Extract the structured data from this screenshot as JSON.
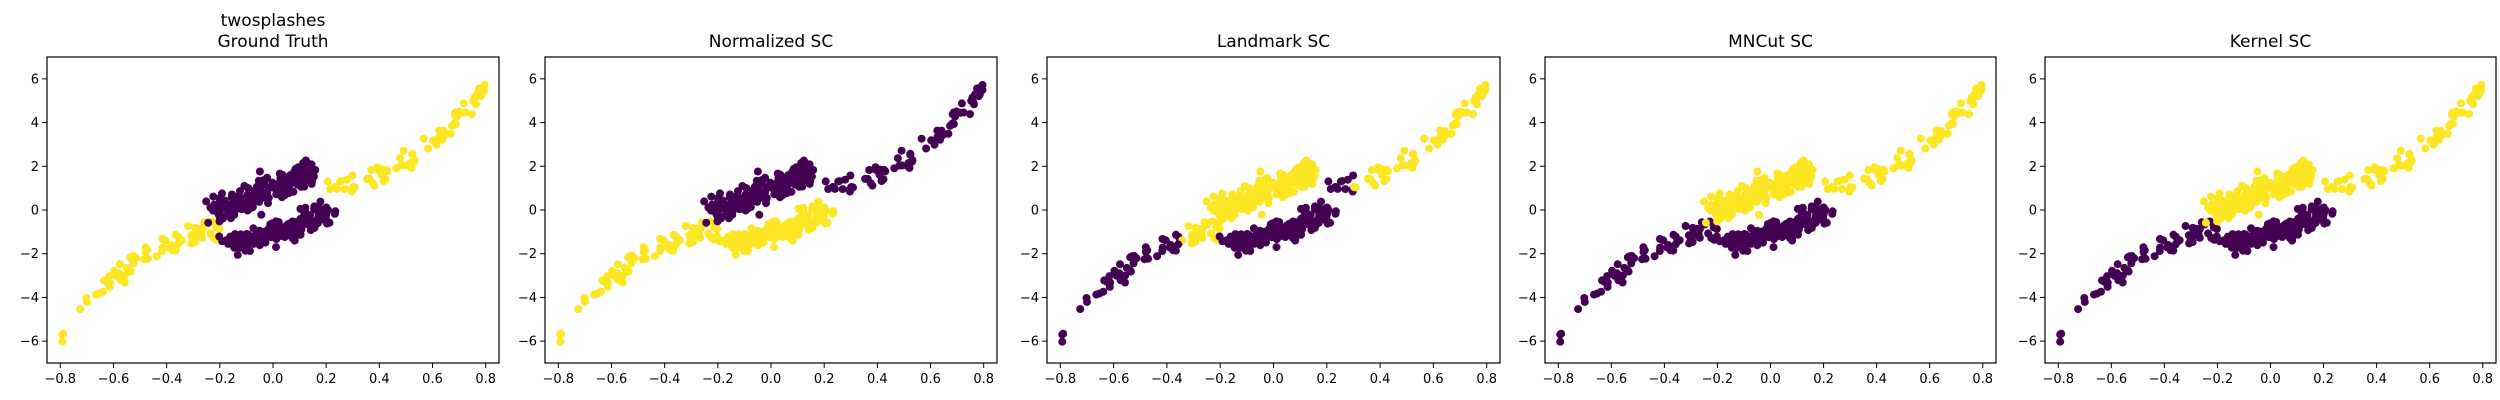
{
  "chart_data": [
    {
      "type": "scatter",
      "title_lines": [
        "twosplashes",
        "Ground Truth"
      ],
      "x_ticks": [
        "-0.8",
        "-0.6",
        "-0.4",
        "-0.2",
        "0.0",
        "0.2",
        "0.4",
        "0.6",
        "0.8"
      ],
      "y_ticks": [
        "-6",
        "-4",
        "-2",
        "0",
        "2",
        "4",
        "6"
      ],
      "xlim": [
        -0.85,
        0.85
      ],
      "ylim": [
        -7.0,
        7.0
      ],
      "colors": {
        "cluster_0": "#440154",
        "cluster_1": "#fde725"
      },
      "segments": {
        "a": 1,
        "b": 0,
        "c": 0,
        "d": 1
      },
      "series": [
        {
          "values": "scatter points: two splash-shaped clusters"
        }
      ]
    },
    {
      "type": "scatter",
      "title_lines": [
        "Normalized SC"
      ],
      "x_ticks": [
        "-0.8",
        "-0.6",
        "-0.4",
        "-0.2",
        "0.0",
        "0.2",
        "0.4",
        "0.6",
        "0.8"
      ],
      "y_ticks": [
        "-6",
        "-4",
        "-2",
        "0",
        "2",
        "4",
        "6"
      ],
      "xlim": [
        -0.85,
        0.85
      ],
      "ylim": [
        -7.0,
        7.0
      ],
      "colors": {
        "cluster_0": "#440154",
        "cluster_1": "#fde725"
      },
      "segments": {
        "a": 1,
        "b": 0,
        "c": 1,
        "d": 0
      }
    },
    {
      "type": "scatter",
      "title_lines": [
        "Landmark SC"
      ],
      "x_ticks": [
        "-0.8",
        "-0.6",
        "-0.4",
        "-0.2",
        "0.0",
        "0.2",
        "0.4",
        "0.6",
        "0.8"
      ],
      "y_ticks": [
        "-6",
        "-4",
        "-2",
        "0",
        "2",
        "4",
        "6"
      ],
      "xlim": [
        -0.85,
        0.85
      ],
      "ylim": [
        -7.0,
        7.0
      ],
      "colors": {
        "cluster_0": "#440154",
        "cluster_1": "#fde725"
      },
      "segments": {
        "a_low": 1,
        "a_high": 0,
        "b": 1,
        "c": 0,
        "d_low": 0,
        "d_high": 1
      }
    },
    {
      "type": "scatter",
      "title_lines": [
        "MNCut SC"
      ],
      "x_ticks": [
        "-0.8",
        "-0.6",
        "-0.4",
        "-0.2",
        "0.0",
        "0.2",
        "0.4",
        "0.6",
        "0.8"
      ],
      "y_ticks": [
        "-6",
        "-4",
        "-2",
        "0",
        "2",
        "4",
        "6"
      ],
      "xlim": [
        -0.85,
        0.85
      ],
      "ylim": [
        -7.0,
        7.0
      ],
      "colors": {
        "cluster_0": "#440154",
        "cluster_1": "#fde725"
      },
      "segments": {
        "a": 0,
        "b": 1,
        "c": 0,
        "d": 1
      }
    },
    {
      "type": "scatter",
      "title_lines": [
        "Kernel SC"
      ],
      "x_ticks": [
        "-0.8",
        "-0.6",
        "-0.4",
        "-0.2",
        "0.0",
        "0.2",
        "0.4",
        "0.6",
        "0.8"
      ],
      "y_ticks": [
        "-6",
        "-4",
        "-2",
        "0",
        "2",
        "4",
        "6"
      ],
      "xlim": [
        -0.85,
        0.85
      ],
      "ylim": [
        -7.0,
        7.0
      ],
      "colors": {
        "cluster_0": "#440154",
        "cluster_1": "#fde725"
      },
      "segments": {
        "a": 0,
        "b": 1,
        "c": 0,
        "d": 1
      }
    }
  ]
}
